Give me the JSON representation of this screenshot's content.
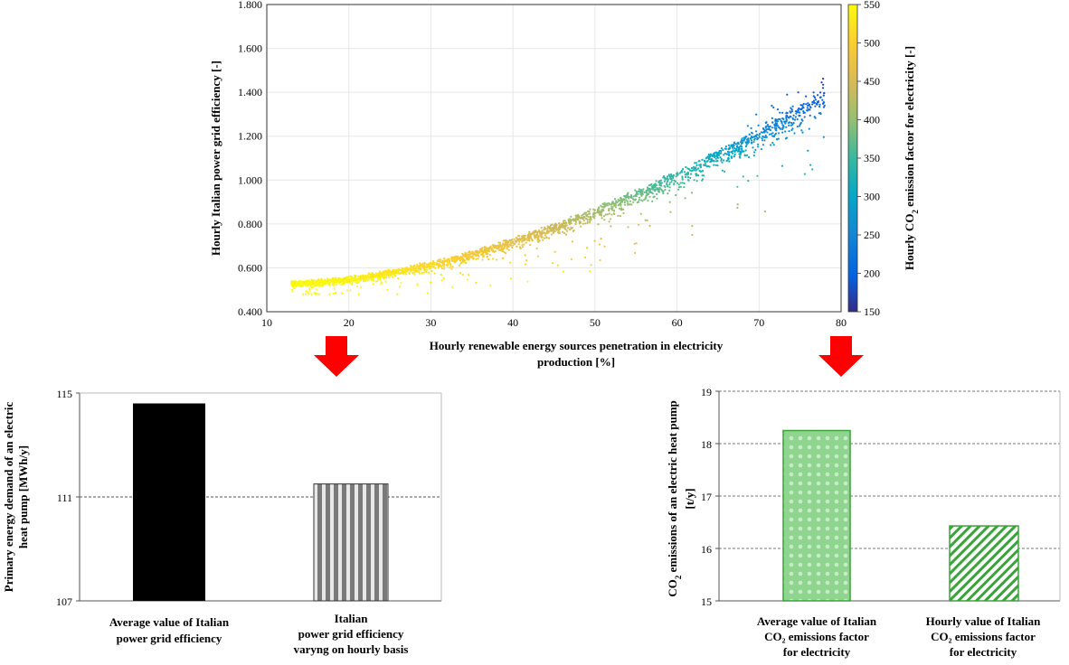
{
  "chart_data": [
    {
      "type": "scatter",
      "ylabel": "Hourly  Italian power  grid  efficiency  [-]",
      "xlabel_line1": "Hourly  renewable  energy sources penetration  in  electricity",
      "xlabel_line2": "production  [%]",
      "xlim": [
        10,
        80
      ],
      "ylim": [
        0.4,
        1.8
      ],
      "xticks": [
        "10",
        "20",
        "30",
        "40",
        "50",
        "60",
        "70",
        "80"
      ],
      "yticks": [
        "0.400",
        "0.600",
        "0.800",
        "1.000",
        "1.200",
        "1.400",
        "1.600",
        "1.800"
      ],
      "colorbar": {
        "label_pre": "Hourly  CO",
        "label_sub": "2",
        "label_post": " emission factor for electricity  [-]",
        "range": [
          150,
          550
        ],
        "ticks": [
          "150",
          "200",
          "250",
          "300",
          "350",
          "400",
          "450",
          "500",
          "550"
        ],
        "colormap": "parula"
      },
      "trend": {
        "note": "points follow y ≈ 0.53 + 0.00065·(x−12)^1.72, spread below curve grows with x",
        "x_range": [
          13,
          78
        ]
      },
      "grid": true
    },
    {
      "type": "bar",
      "ylabel_line1": "Primary  energy demand of an electric",
      "ylabel_line2": "heat pump  [MWh/y]",
      "ylim": [
        107,
        115
      ],
      "yticks": [
        "107",
        "111",
        "115"
      ],
      "categories": [
        [
          "Average value of Italian",
          "power grid  efficiency"
        ],
        [
          "Italian",
          "power grid  efficiency",
          "varyng on hourly  basis"
        ]
      ],
      "values": [
        114.6,
        111.5
      ],
      "colors": [
        "#000000",
        "#8c8c8c"
      ]
    },
    {
      "type": "bar",
      "ylabel_pre": "CO",
      "ylabel_sub": "2",
      "ylabel_post": " emissions of an electric heat pump",
      "ylabel_line2": "[t/y]",
      "ylim": [
        15,
        19
      ],
      "yticks": [
        "15",
        "16",
        "17",
        "18",
        "19"
      ],
      "categories": [
        [
          "Average value of Italian",
          "CO₂ emissions factor",
          "for electricity"
        ],
        [
          "Hourly  value of Italian",
          "CO₂ emissions factor",
          "for electricity"
        ]
      ],
      "values": [
        18.25,
        16.43
      ],
      "colors": [
        "#66c266",
        "#3a9e3a"
      ]
    }
  ],
  "arrows": {
    "color": "#ff0000"
  }
}
